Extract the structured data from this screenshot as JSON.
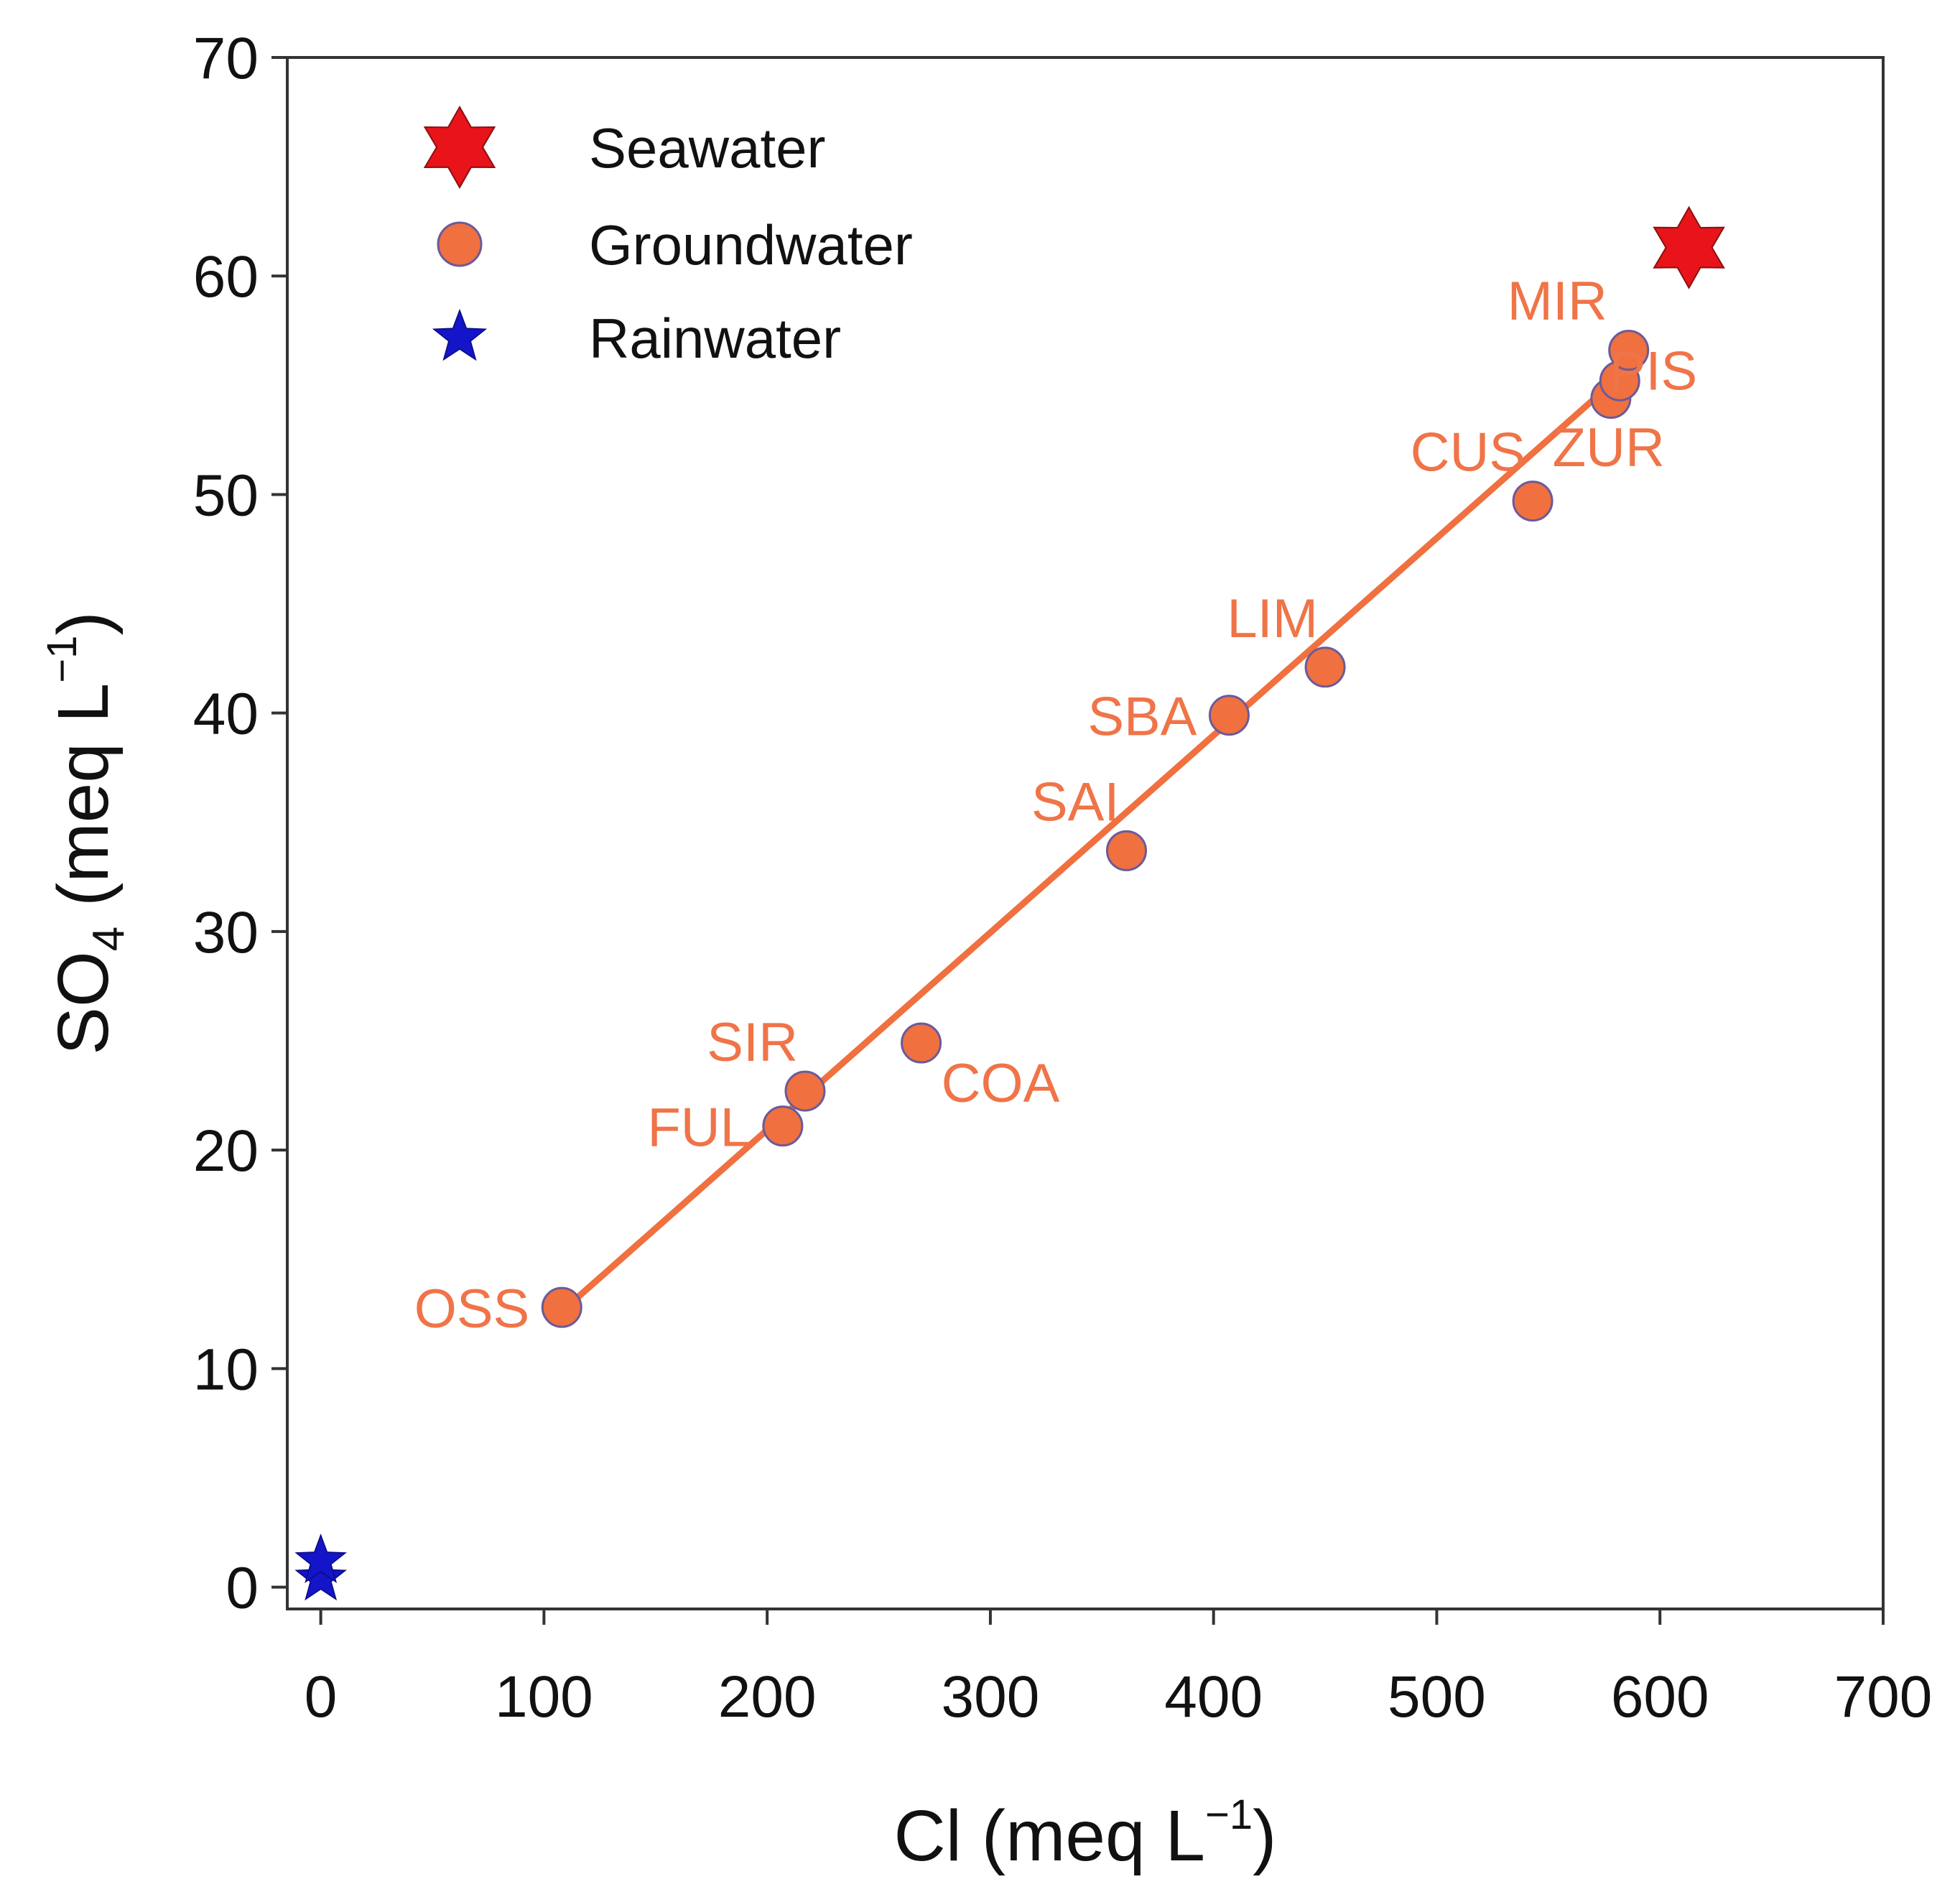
{
  "chart_data": {
    "type": "scatter",
    "title": "",
    "xlabel": {
      "base": "Cl (meq L",
      "sup": "−1",
      "close": ")"
    },
    "ylabel": {
      "base": "SO",
      "sub": "4",
      "rest": " (meq L",
      "sup": "−1",
      "close": ")"
    },
    "xlim": [
      -15,
      700
    ],
    "ylim": [
      -1,
      70
    ],
    "x_ticks": [
      0,
      100,
      200,
      300,
      400,
      500,
      600,
      700
    ],
    "y_ticks": [
      0,
      10,
      20,
      30,
      40,
      50,
      60,
      70
    ],
    "x_tick_labels": [
      "0",
      "100",
      "200",
      "300",
      "400",
      "500",
      "600",
      "700"
    ],
    "y_tick_labels": [
      "0",
      "10",
      "20",
      "30",
      "40",
      "50",
      "60",
      "70"
    ],
    "legend": {
      "position": "top-left",
      "entries": [
        {
          "label": "Seawater",
          "marker": "hexagram",
          "color": "#e8141a"
        },
        {
          "label": "Groundwater",
          "marker": "circle",
          "color": "#f07040"
        },
        {
          "label": "Rainwater",
          "marker": "star",
          "color": "#1414c8"
        }
      ]
    },
    "colors": {
      "groundwater": "#f07040",
      "groundwater_edge": "#6a5a9a",
      "label": "#ef7448",
      "seawater": "#e8141a",
      "rainwater": "#1414c8",
      "trendline": "#f07040"
    },
    "trendline": {
      "from": [
        110,
        12.8
      ],
      "to": [
        583,
        55.5
      ]
    },
    "series": [
      {
        "name": "Groundwater",
        "points": [
          {
            "label": "OSS",
            "x": 108,
            "y": 12.8,
            "label_side": "left"
          },
          {
            "label": "FUL",
            "x": 207,
            "y": 21.1,
            "label_side": "left"
          },
          {
            "label": "SIR",
            "x": 217,
            "y": 22.7,
            "label_side": "above-left"
          },
          {
            "label": "COA",
            "x": 269,
            "y": 24.9,
            "label_side": "below-right"
          },
          {
            "label": "SAI",
            "x": 361,
            "y": 33.7,
            "label_side": "above-left"
          },
          {
            "label": "SBA",
            "x": 407,
            "y": 39.9,
            "label_side": "left"
          },
          {
            "label": "LIM",
            "x": 450,
            "y": 42.1,
            "label_side": "above-left"
          },
          {
            "label": "CUS",
            "x": 543,
            "y": 49.7,
            "label_side": "above-left"
          },
          {
            "label": "",
            "x": 578,
            "y": 54.4,
            "label_side": "none"
          },
          {
            "label": "",
            "x": 582,
            "y": 55.2,
            "label_side": "none"
          },
          {
            "label": "",
            "x": 586,
            "y": 56.6,
            "label_side": "none"
          }
        ]
      },
      {
        "name": "Seawater",
        "points": [
          {
            "label": "",
            "x": 613,
            "y": 61.3
          }
        ]
      },
      {
        "name": "Rainwater",
        "points": [
          {
            "label": "",
            "x": 0,
            "y": 0.4
          },
          {
            "label": "",
            "x": 0,
            "y": 1.2
          }
        ]
      }
    ],
    "cluster_labels": [
      {
        "text": "MIR",
        "x": 554,
        "y": 58.0
      },
      {
        "text": "PIS",
        "x": 597,
        "y": 54.8
      },
      {
        "text": "ZUR",
        "x": 577,
        "y": 51.3
      }
    ]
  }
}
